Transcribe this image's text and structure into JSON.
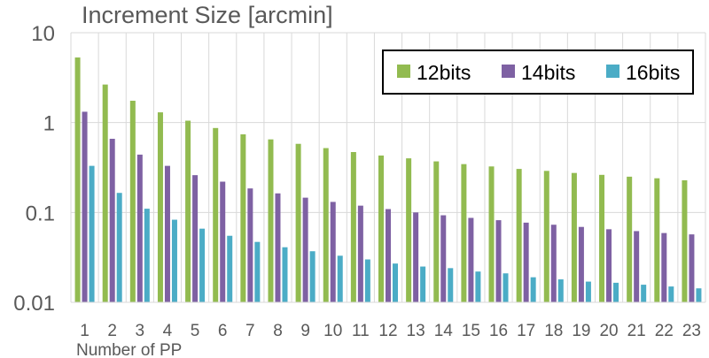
{
  "chart_data": {
    "type": "bar",
    "title": "Increment Size  [arcmin]",
    "xlabel": "Number of PP",
    "ylabel": "",
    "yscale": "log",
    "ylim": [
      0.01,
      10
    ],
    "yticks": [
      "10",
      "1",
      "0.1",
      "0.01"
    ],
    "grid": "vertical",
    "legend_position": "top-right",
    "categories": [
      "1",
      "2",
      "3",
      "4",
      "5",
      "6",
      "7",
      "8",
      "9",
      "10",
      "11",
      "12",
      "13",
      "14",
      "15",
      "16",
      "17",
      "18",
      "19",
      "20",
      "21",
      "22",
      "23"
    ],
    "series": [
      {
        "name": "12bits",
        "color": "#92bb50",
        "values": [
          5.3,
          2.65,
          1.75,
          1.3,
          1.05,
          0.87,
          0.74,
          0.65,
          0.58,
          0.52,
          0.47,
          0.43,
          0.4,
          0.37,
          0.345,
          0.325,
          0.305,
          0.29,
          0.275,
          0.262,
          0.25,
          0.24,
          0.228
        ]
      },
      {
        "name": "14bits",
        "color": "#7e61a3",
        "values": [
          1.32,
          0.66,
          0.44,
          0.33,
          0.26,
          0.22,
          0.185,
          0.163,
          0.146,
          0.131,
          0.119,
          0.109,
          0.1,
          0.093,
          0.087,
          0.082,
          0.077,
          0.073,
          0.069,
          0.065,
          0.062,
          0.059,
          0.057
        ]
      },
      {
        "name": "16bits",
        "color": "#4bacc6",
        "values": [
          0.33,
          0.165,
          0.11,
          0.083,
          0.066,
          0.055,
          0.047,
          0.041,
          0.037,
          0.033,
          0.03,
          0.027,
          0.025,
          0.024,
          0.022,
          0.021,
          0.019,
          0.018,
          0.017,
          0.0165,
          0.0157,
          0.015,
          0.0143
        ]
      }
    ]
  }
}
